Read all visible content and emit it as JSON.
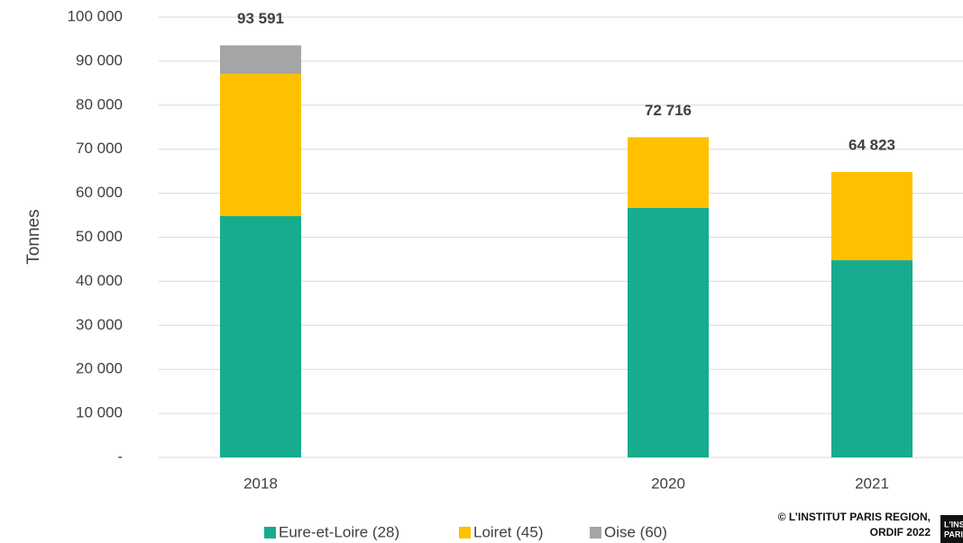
{
  "chart_data": {
    "type": "stacked_bar",
    "y_label": "Tonnes",
    "categories": [
      "2018",
      null,
      "2020",
      "2021"
    ],
    "series": [
      {
        "name": "Eure-et-Loire (28)",
        "color": "#17ac8e",
        "values": [
          54800,
          null,
          56700,
          44800
        ]
      },
      {
        "name": "Loiret (45)",
        "color": "#ffc000",
        "values": [
          32300,
          null,
          16016,
          20023
        ]
      },
      {
        "name": "Oise (60)",
        "color": "#a5a5a5",
        "values": [
          6491,
          null,
          null,
          null
        ]
      }
    ],
    "totals": [
      93591,
      null,
      72716,
      64823
    ],
    "total_labels": [
      "93 591",
      null,
      "72 716",
      "64 823"
    ],
    "ylim": [
      0,
      100000
    ],
    "yticks": [
      {
        "value": 0,
        "label": "-"
      },
      {
        "value": 10000,
        "label": "10 000"
      },
      {
        "value": 20000,
        "label": "20 000"
      },
      {
        "value": 30000,
        "label": "30 000"
      },
      {
        "value": 40000,
        "label": "40 000"
      },
      {
        "value": 50000,
        "label": "50 000"
      },
      {
        "value": 60000,
        "label": "60 000"
      },
      {
        "value": 70000,
        "label": "70 000"
      },
      {
        "value": 80000,
        "label": "80 000"
      },
      {
        "value": 90000,
        "label": "90 000"
      },
      {
        "value": 100000,
        "label": "100 000"
      }
    ],
    "grid": true,
    "legend": "bottom",
    "credit": [
      "© L’INSTITUT PARIS REGION,",
      "ORDIF 2022"
    ],
    "logo": [
      "L'INS",
      "PARI"
    ]
  }
}
